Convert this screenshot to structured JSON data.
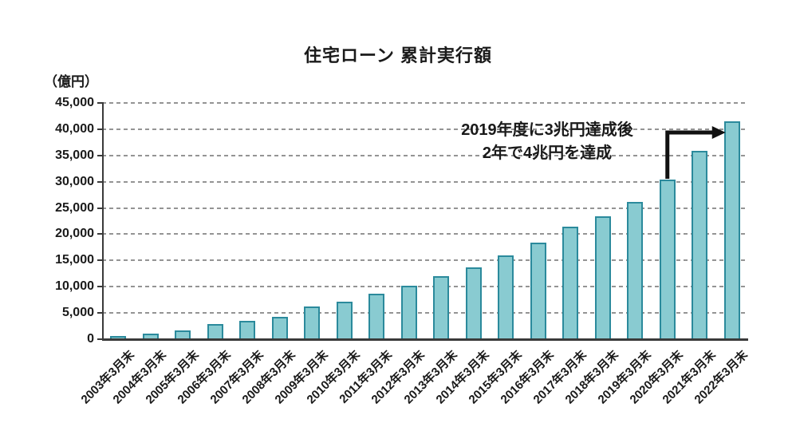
{
  "chart_data": {
    "type": "bar",
    "title": "住宅ローン 累計実行額",
    "unit_label": "（億円）",
    "categories": [
      "2003年3月末",
      "2004年3月末",
      "2005年3月末",
      "2006年3月末",
      "2007年3月末",
      "2008年3月末",
      "2009年3月末",
      "2010年3月末",
      "2011年3月末",
      "2012年3月末",
      "2013年3月末",
      "2014年3月末",
      "2015年3月末",
      "2016年3月末",
      "2017年3月末",
      "2018年3月末",
      "2019年3月末",
      "2020年3月末",
      "2021年3月末",
      "2022年3月末"
    ],
    "values": [
      600,
      1000,
      1700,
      2900,
      3500,
      4300,
      6200,
      7100,
      8600,
      10200,
      12000,
      13700,
      16000,
      18400,
      21500,
      23400,
      26200,
      30400,
      35900,
      41500
    ],
    "xlabel": "",
    "ylabel": "（億円）",
    "ylim": [
      0,
      45000
    ],
    "ytick_step": 5000,
    "yticks": [
      0,
      5000,
      10000,
      15000,
      20000,
      25000,
      30000,
      35000,
      40000,
      45000
    ],
    "grid": "horizontal-dashed",
    "legend": "none",
    "annotation": {
      "line1": "2019年度に3兆円達成後",
      "line2": "2年で4兆円を達成",
      "arrow_from_category": "2020年3月末",
      "arrow_to_category": "2022年3月末"
    },
    "colors": {
      "bar_fill": "#89cbd1",
      "bar_border": "#2b8a9c",
      "gridline": "#949494",
      "axis": "#3a3a3a",
      "text": "#1a1a1a",
      "arrow": "#111111"
    }
  }
}
